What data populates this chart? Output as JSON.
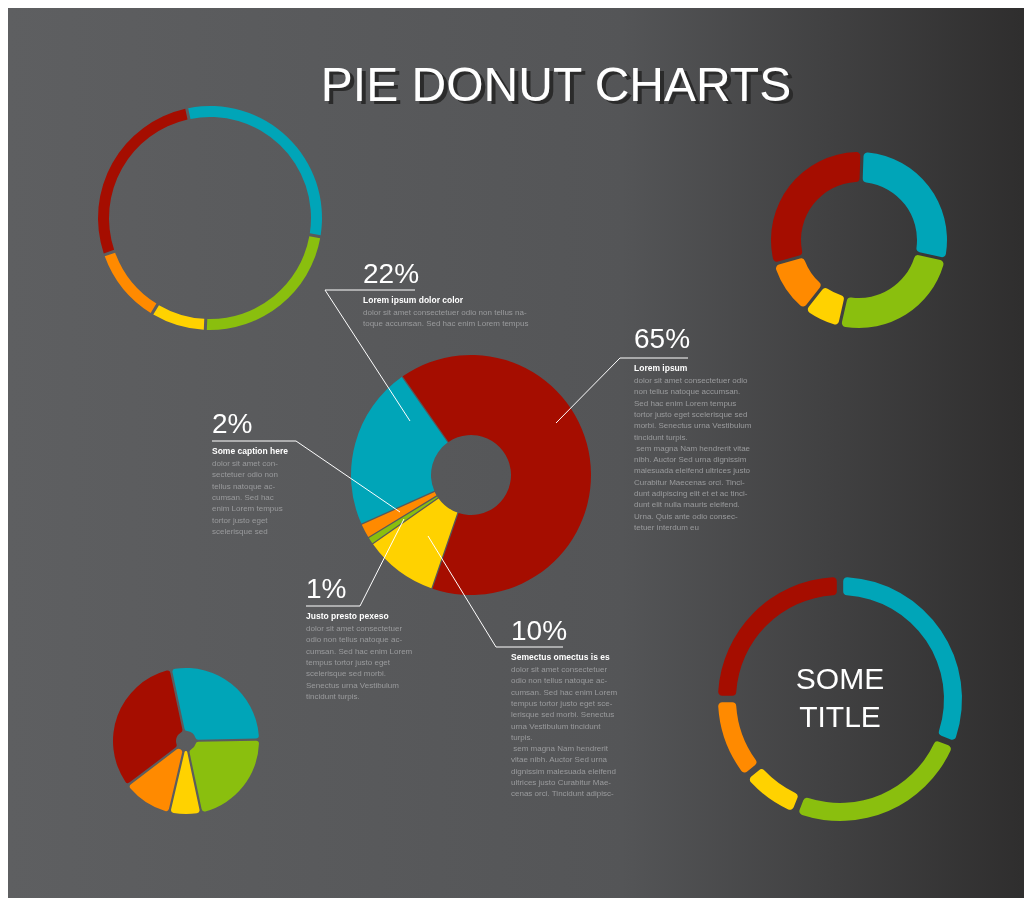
{
  "chart_data": [
    {
      "type": "donut",
      "title": "PIE DONUT CHARTS",
      "categories": [
        "Lorem ipsum",
        "Semectus omectus is es",
        "Justo presto pexeso",
        "Some caption here",
        "Lorem ipsum dolor color"
      ],
      "values": [
        65,
        10,
        1,
        2,
        22
      ],
      "value_labels": [
        "65%",
        "10%",
        "1%",
        "2%",
        "22%"
      ],
      "colors": [
        "#a50d00",
        "#ffd200",
        "#8abf0e",
        "#ff8a00",
        "#00a5b8"
      ],
      "annotations": [
        "dolor sit amet consectetuer odio\nnon tellus natoque accumsan.\nSed hac enim Lorem tempus\ntortor justo eget scelerisque sed\nmorbi. Senectus urna Vestibulum\ntincidunt turpis.\n sem magna Nam hendrerit vitae\nnibh. Auctor Sed urna dignissim\nmalesuada eleifend ultrices justo\nCurabitur Maecenas orci. Tinci-\ndunt adipiscing elit et et ac tinci-\ndunt elit nulla mauris eleifend.\nUrna. Quis ante odio consec-\ntetuer interdum eu",
        "dolor sit amet consectetuer\nodio non tellus natoque ac-\ncumsan. Sed hac enim Lorem\ntempus tortor justo eget sce-\nlerisque sed morbi. Senectus\nurna Vestibulum tincidunt\nturpis.\n sem magna Nam hendrerit\nvitae nibh. Auctor Sed urna\ndignissim malesuada eleifend\nultrices justo Curabitur Mae-\ncenas orci. Tincidunt adipisc-",
        "dolor sit amet consectetuer\nodio non tellus natoque ac-\ncumsan. Sed hac enim Lorem\ntempus tortor justo eget\nscelerisque sed morbi.\nSenectus urna Vestibulum\ntincidunt turpis.",
        "dolor sit amet con-\nsectetuer odio non\ntellus natoque ac-\ncumsan. Sed hac\nenim Lorem tempus\ntortor justo eget\nscelerisque sed",
        "dolor sit amet consectetuer odio non tellus na-\ntoque accumsan. Sed hac enim Lorem tempus"
      ]
    },
    {
      "type": "donut",
      "categories": [
        null,
        null,
        null,
        null,
        null
      ],
      "values": [
        31,
        23,
        8,
        11,
        27
      ],
      "colors": [
        "#00a5b8",
        "#8abf0e",
        "#ffd200",
        "#ff8a00",
        "#a50d00"
      ]
    },
    {
      "type": "donut",
      "categories": [
        null,
        null,
        null,
        null,
        null
      ],
      "values": [
        28,
        25,
        7,
        10,
        30
      ],
      "colors": [
        "#00a5b8",
        "#8abf0e",
        "#ffd200",
        "#ff8a00",
        "#a50d00"
      ]
    },
    {
      "type": "donut",
      "categories": [
        null,
        null,
        null,
        null,
        null
      ],
      "values": [
        28,
        22,
        7,
        11,
        32
      ],
      "colors": [
        "#00a5b8",
        "#8abf0e",
        "#ffd200",
        "#ff8a00",
        "#a50d00"
      ]
    },
    {
      "type": "donut",
      "title": "SOME\nTITLE",
      "categories": [
        null,
        null,
        null,
        null,
        null
      ],
      "values": [
        31,
        25,
        8,
        11,
        25
      ],
      "colors": [
        "#00a5b8",
        "#8abf0e",
        "#ffd200",
        "#ff8a00",
        "#a50d00"
      ]
    }
  ]
}
